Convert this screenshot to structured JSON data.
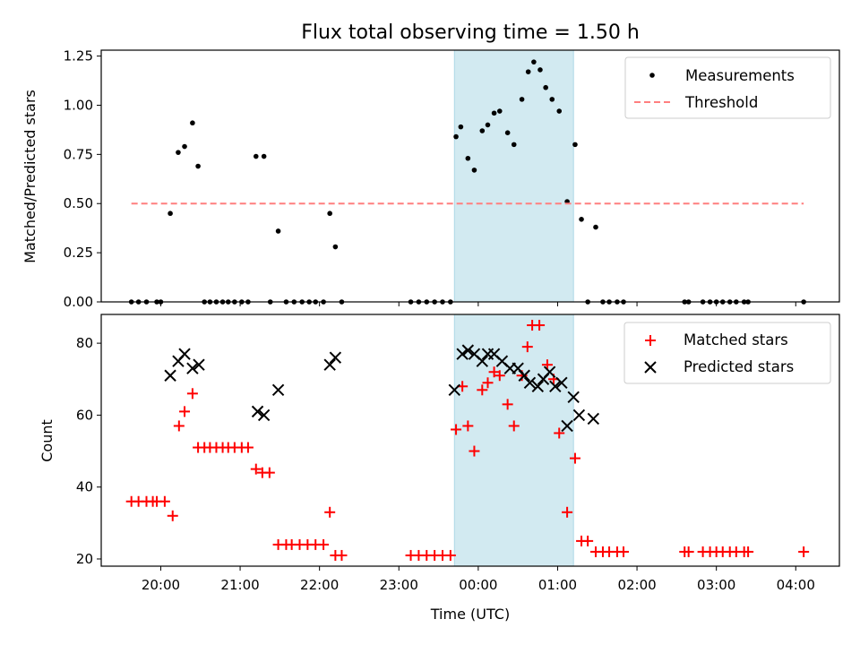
{
  "figure": {
    "title": "Flux total observing time = 1.50 h",
    "xlabel": "Time (UTC)",
    "x_ticks": [
      "20:00",
      "21:00",
      "22:00",
      "23:00",
      "00:00",
      "01:00",
      "02:00",
      "03:00",
      "04:00"
    ],
    "x_range_hours": [
      19.25,
      28.55
    ],
    "shaded_interval_hours": [
      23.7,
      25.2
    ],
    "colors": {
      "shade": "#add8e6",
      "matched": "#ff0000",
      "predicted": "#000000",
      "measurements": "#000000",
      "threshold": "#ff7f7f"
    }
  },
  "chart_data": [
    {
      "type": "scatter",
      "ylabel": "Matched/Predicted stars",
      "ylim": [
        0,
        1.28
      ],
      "y_ticks": [
        "0.00",
        "0.25",
        "0.50",
        "0.75",
        "1.00",
        "1.25"
      ],
      "legend_position": "top-right",
      "series": [
        {
          "name": "Measurements",
          "marker": "dot",
          "x": [
            19.63,
            19.72,
            19.82,
            19.95,
            20.0,
            20.12,
            20.22,
            20.3,
            20.4,
            20.47,
            20.55,
            20.62,
            20.7,
            20.78,
            20.85,
            20.93,
            21.02,
            21.1,
            21.2,
            21.3,
            21.38,
            21.48,
            21.58,
            21.68,
            21.78,
            21.87,
            21.95,
            22.05,
            22.13,
            22.2,
            22.28,
            23.15,
            23.25,
            23.35,
            23.45,
            23.55,
            23.65,
            23.72,
            23.78,
            23.87,
            23.95,
            24.05,
            24.12,
            24.2,
            24.27,
            24.37,
            24.45,
            24.55,
            24.63,
            24.7,
            24.78,
            24.85,
            24.93,
            25.02,
            25.12,
            25.22,
            25.3,
            25.38,
            25.48,
            25.57,
            25.65,
            25.75,
            25.83,
            26.6,
            26.65,
            26.83,
            26.92,
            27.0,
            27.08,
            27.17,
            27.25,
            27.35,
            27.4,
            28.1
          ],
          "y": [
            0,
            0,
            0,
            0,
            0,
            0.45,
            0.76,
            0.79,
            0.91,
            0.69,
            0,
            0,
            0,
            0,
            0,
            0,
            0,
            0,
            0.74,
            0.74,
            0,
            0.36,
            0,
            0,
            0,
            0,
            0,
            0,
            0.45,
            0.28,
            0,
            0,
            0,
            0,
            0,
            0,
            0,
            0.84,
            0.89,
            0.73,
            0.67,
            0.87,
            0.9,
            0.96,
            0.97,
            0.86,
            0.8,
            1.03,
            1.17,
            1.22,
            1.18,
            1.09,
            1.03,
            0.97,
            0.51,
            0.8,
            0.42,
            0,
            0.38,
            0,
            0,
            0,
            0,
            0,
            0,
            0,
            0,
            0,
            0,
            0,
            0,
            0,
            0,
            0
          ]
        },
        {
          "name": "Threshold",
          "marker": "dashed-line",
          "x": [
            19.63,
            28.1
          ],
          "y": [
            0.5,
            0.5
          ]
        }
      ]
    },
    {
      "type": "scatter",
      "ylabel": "Count",
      "ylim": [
        18,
        88
      ],
      "y_ticks": [
        "20",
        "40",
        "60",
        "80"
      ],
      "legend_position": "top-right",
      "series": [
        {
          "name": "Matched stars",
          "marker": "plus",
          "x": [
            19.63,
            19.72,
            19.82,
            19.9,
            19.95,
            20.05,
            20.15,
            20.23,
            20.3,
            20.4,
            20.47,
            20.55,
            20.62,
            20.7,
            20.78,
            20.85,
            20.93,
            21.02,
            21.1,
            21.2,
            21.28,
            21.37,
            21.48,
            21.58,
            21.65,
            21.75,
            21.85,
            21.95,
            22.05,
            22.13,
            22.2,
            22.28,
            23.15,
            23.25,
            23.35,
            23.45,
            23.55,
            23.65,
            23.72,
            23.8,
            23.87,
            23.95,
            24.05,
            24.12,
            24.2,
            24.27,
            24.37,
            24.45,
            24.55,
            24.62,
            24.68,
            24.77,
            24.87,
            24.95,
            25.02,
            25.12,
            25.22,
            25.3,
            25.38,
            25.48,
            25.57,
            25.65,
            25.75,
            25.83,
            26.6,
            26.65,
            26.83,
            26.92,
            27.0,
            27.08,
            27.17,
            27.25,
            27.35,
            27.4,
            28.1
          ],
          "y": [
            36,
            36,
            36,
            36,
            36,
            36,
            32,
            57,
            61,
            66,
            51,
            51,
            51,
            51,
            51,
            51,
            51,
            51,
            51,
            45,
            44,
            44,
            24,
            24,
            24,
            24,
            24,
            24,
            24,
            33,
            21,
            21,
            21,
            21,
            21,
            21,
            21,
            21,
            56,
            68,
            57,
            50,
            67,
            69,
            72,
            71,
            63,
            57,
            71,
            79,
            85,
            85,
            74,
            70,
            55,
            33,
            48,
            25,
            25,
            22,
            22,
            22,
            22,
            22,
            22,
            22,
            22,
            22,
            22,
            22,
            22,
            22,
            22,
            22,
            22
          ]
        },
        {
          "name": "Predicted stars",
          "marker": "x",
          "x": [
            20.12,
            20.22,
            20.3,
            20.4,
            20.48,
            21.22,
            21.3,
            21.48,
            22.13,
            22.2,
            23.7,
            23.8,
            23.87,
            23.95,
            24.05,
            24.12,
            24.2,
            24.3,
            24.4,
            24.5,
            24.58,
            24.65,
            24.75,
            24.82,
            24.9,
            24.97,
            25.05,
            25.12,
            25.2,
            25.27,
            25.45
          ],
          "y": [
            71,
            75,
            77,
            73,
            74,
            61,
            60,
            67,
            74,
            76,
            67,
            77,
            78,
            77,
            75,
            77,
            77,
            75,
            73,
            73,
            71,
            69,
            68,
            70,
            72,
            68,
            69,
            57,
            65,
            60,
            59
          ]
        }
      ]
    }
  ]
}
